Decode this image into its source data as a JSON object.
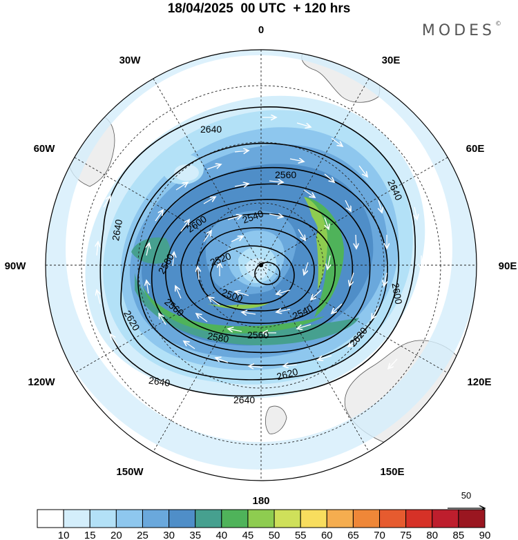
{
  "title": "18/04/2025  00 UTC  + 120 hrs",
  "logo": "MODES",
  "logo_mark": "©",
  "longitude_labels": {
    "n0": "0",
    "n30e": "30E",
    "n60e": "60E",
    "n90e": "90E",
    "n120e": "120E",
    "n150e": "150E",
    "n180": "180",
    "n150w": "150W",
    "n120w": "120W",
    "n90w": "90W",
    "n60w": "60W",
    "n30w": "30W"
  },
  "contour_labels": {
    "c1": "2640",
    "c2": "2560",
    "c3": "2640",
    "c4": "2600",
    "c5": "2540",
    "c6": "2640",
    "c7": "2580",
    "c8": "2520",
    "c9": "2500",
    "c10": "2560",
    "c11": "2540",
    "c12": "2600",
    "c13": "2620",
    "c14": "2580",
    "c15": "2560",
    "c16": "2620",
    "c17": "2640",
    "c18": "2620",
    "c19": "2640"
  },
  "vector_reference": "50",
  "colorbar": {
    "ticks": [
      "10",
      "15",
      "20",
      "25",
      "30",
      "35",
      "40",
      "45",
      "50",
      "55",
      "60",
      "65",
      "70",
      "75",
      "80",
      "85",
      "90"
    ],
    "colors": [
      "#ffffff",
      "#d4eefb",
      "#b3e1f7",
      "#8ec7ee",
      "#6aa8dc",
      "#4f8ec8",
      "#46a08f",
      "#4fb35a",
      "#8ecc50",
      "#cfe05a",
      "#f8dd5e",
      "#f5ad4f",
      "#ef8738",
      "#e65b2f",
      "#d63127",
      "#be1e2d",
      "#9a1620"
    ]
  }
}
